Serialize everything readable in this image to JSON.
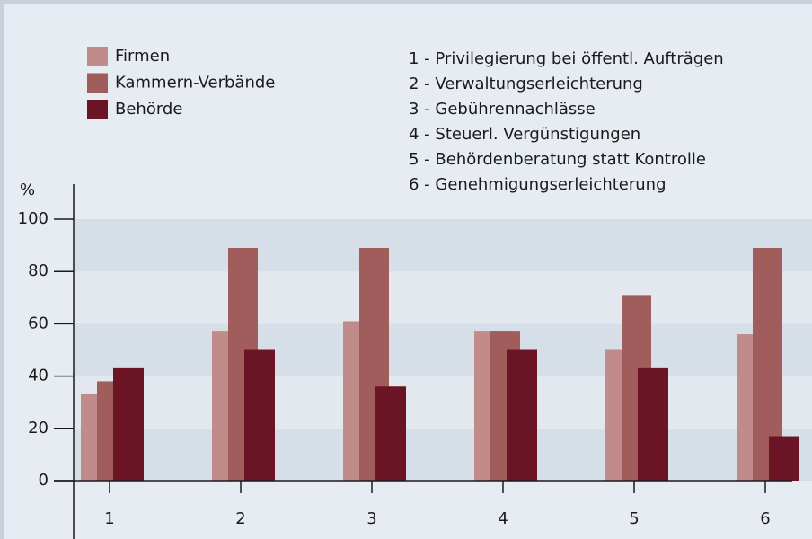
{
  "chart_data": {
    "type": "bar",
    "y_label": "%",
    "categories": [
      "1",
      "2",
      "3",
      "4",
      "5",
      "6"
    ],
    "series": [
      {
        "name": "Firmen",
        "color": "#c08b88",
        "values": [
          33,
          57,
          61,
          57,
          50,
          56
        ]
      },
      {
        "name": "Kammern-Verbände",
        "color": "#a05d5c",
        "values": [
          38,
          89,
          89,
          57,
          71,
          89
        ]
      },
      {
        "name": "Behörde",
        "color": "#6b1426",
        "values": [
          43,
          50,
          36,
          50,
          43,
          17
        ]
      }
    ],
    "annotations": [
      "1 - Privilegierung bei öffentl. Aufträgen",
      "2 - Verwaltungserleichterung",
      "3 - Gebührennachlässe",
      "4 - Steuerl. Vergünstigungen",
      "5 - Behördenberatung statt Kontrolle",
      "6 - Genehmigungserleichterung"
    ],
    "ylim": [
      0,
      100
    ],
    "yticks": [
      0,
      20,
      40,
      60,
      80,
      100
    ],
    "grid": true
  }
}
